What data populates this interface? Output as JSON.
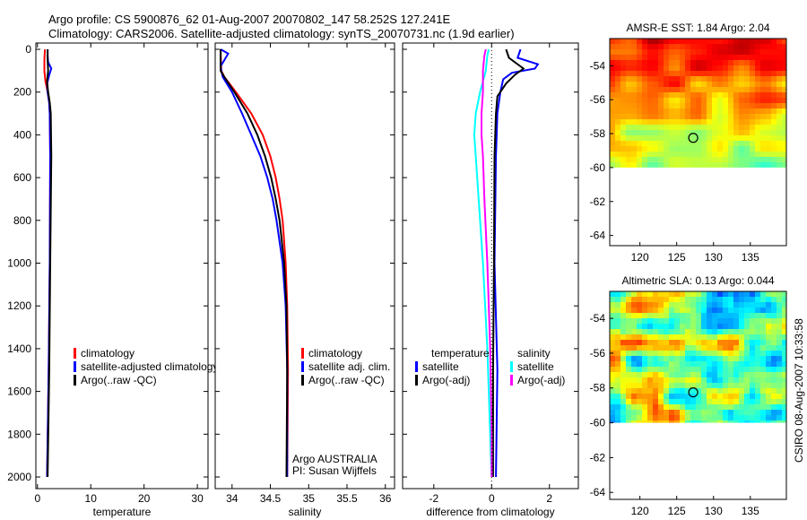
{
  "header": {
    "line1": "Argo profile: CS 5900876_62 01-Aug-2007 20070802_147 58.252S 127.241E",
    "line2": "Climatology: CARS2006. Satellite-adjusted climatology: synTS_20070731.nc (1.9d earlier)"
  },
  "side_stamp": "CSIRO 08-Aug-2007 10:33:58",
  "chart_data": [
    {
      "type": "line",
      "xlabel": "temperature",
      "xlim": [
        -0.3,
        32
      ],
      "xticks": [
        0,
        10,
        20,
        30
      ],
      "ylim": [
        0,
        2080
      ],
      "yticks": [
        0,
        200,
        400,
        600,
        800,
        1000,
        1200,
        1400,
        1600,
        1800,
        2000
      ],
      "yreverse": true,
      "legend": [
        {
          "label": "climatology",
          "color": "#ff0000"
        },
        {
          "label": "satellite-adjusted climatology",
          "color": "#0000ff"
        },
        {
          "label": "Argo(..raw -QC)",
          "color": "#000000"
        }
      ],
      "series": [
        {
          "name": "climatology",
          "color": "#ff0000",
          "depth": [
            0,
            50,
            100,
            150,
            200,
            250,
            300,
            500,
            1000,
            1500,
            2000
          ],
          "values": [
            1.4,
            1.3,
            1.3,
            1.5,
            1.9,
            2.2,
            2.3,
            2.4,
            2.3,
            2.1,
            1.8
          ]
        },
        {
          "name": "satellite-adjusted climatology",
          "color": "#0000ff",
          "depth": [
            0,
            30,
            60,
            90,
            120,
            160,
            200,
            250,
            300,
            500,
            1000,
            1500,
            2000
          ],
          "values": [
            1.9,
            1.9,
            2.0,
            2.6,
            2.2,
            1.8,
            1.9,
            2.2,
            2.3,
            2.4,
            2.3,
            2.1,
            1.8
          ]
        },
        {
          "name": "Argo",
          "color": "#000000",
          "depth": [
            0,
            50,
            100,
            150,
            200,
            250,
            300,
            500,
            1000,
            1500,
            2000
          ],
          "values": [
            1.9,
            1.9,
            2.0,
            1.8,
            2.0,
            2.3,
            2.5,
            2.6,
            2.4,
            2.2,
            1.9
          ]
        }
      ]
    },
    {
      "type": "line",
      "xlabel": "salinity",
      "xlim": [
        33.78,
        36.12
      ],
      "xticks": [
        34,
        34.5,
        35,
        35.5,
        36
      ],
      "ylim": [
        0,
        2080
      ],
      "yreverse": true,
      "legend": [
        {
          "label": "climatology",
          "color": "#ff0000"
        },
        {
          "label": "satellite adj. clim.",
          "color": "#0000ff"
        },
        {
          "label": "Argo(..raw -QC)",
          "color": "#000000"
        }
      ],
      "annotation": [
        "Argo AUSTRALIA",
        "PI: Susan Wijffels"
      ],
      "series": [
        {
          "name": "climatology",
          "color": "#ff0000",
          "depth": [
            0,
            100,
            130,
            200,
            300,
            400,
            500,
            600,
            700,
            800,
            1000,
            1200,
            1500,
            2000
          ],
          "values": [
            33.85,
            33.86,
            33.9,
            34.05,
            34.25,
            34.4,
            34.5,
            34.57,
            34.62,
            34.66,
            34.7,
            34.72,
            34.73,
            34.72
          ]
        },
        {
          "name": "satellite adj. clim.",
          "color": "#0000ff",
          "depth": [
            0,
            20,
            50,
            80,
            100,
            130,
            200,
            300,
            400,
            500,
            600,
            700,
            800,
            1000,
            1200,
            1500,
            2000
          ],
          "values": [
            33.85,
            33.95,
            33.9,
            33.85,
            33.86,
            33.88,
            34.0,
            34.13,
            34.25,
            34.37,
            34.46,
            34.53,
            34.58,
            34.66,
            34.7,
            34.72,
            34.72
          ]
        },
        {
          "name": "Argo",
          "color": "#000000",
          "depth": [
            0,
            100,
            130,
            200,
            300,
            400,
            500,
            600,
            700,
            800,
            1000,
            1200,
            1500,
            2000
          ],
          "values": [
            33.85,
            33.85,
            33.9,
            34.03,
            34.2,
            34.33,
            34.43,
            34.51,
            34.57,
            34.62,
            34.68,
            34.71,
            34.72,
            34.71
          ]
        }
      ]
    },
    {
      "type": "line",
      "xlabel": "difference from climatology",
      "xlim": [
        -3.08,
        3.0
      ],
      "xticks": [
        -2,
        0,
        2
      ],
      "ylim": [
        0,
        2080
      ],
      "yreverse": true,
      "legend": [
        {
          "label": "temperature",
          "color": null
        },
        {
          "label": "satellite",
          "color": "#0000ff"
        },
        {
          "label": "Argo(-adj)",
          "color": "#000000"
        },
        {
          "label": "salinity",
          "color": null
        },
        {
          "label": "satellite",
          "color": "#00ffff"
        },
        {
          "label": "Argo(-adj)",
          "color": "#ff00ff"
        }
      ],
      "series": [
        {
          "name": "temp satellite",
          "color": "#0000ff",
          "depth": [
            0,
            40,
            70,
            90,
            110,
            140,
            200,
            300,
            500,
            1000,
            1500,
            2000
          ],
          "values": [
            1.0,
            0.9,
            1.6,
            1.5,
            0.7,
            0.4,
            0.3,
            0.2,
            0.15,
            0.1,
            0.2,
            0.15
          ]
        },
        {
          "name": "temp Argo",
          "color": "#000000",
          "depth": [
            0,
            40,
            90,
            120,
            160,
            220,
            300,
            500,
            1000,
            1500,
            2000
          ],
          "values": [
            0.5,
            0.6,
            1.1,
            0.8,
            0.5,
            0.2,
            0.15,
            0.1,
            0.08,
            0.05,
            0.05
          ]
        },
        {
          "name": "salinity satellite",
          "color": "#00ffff",
          "depth": [
            0,
            30,
            100,
            200,
            300,
            400,
            500,
            700,
            1000,
            1400,
            1800,
            2000
          ],
          "values": [
            -0.1,
            -0.15,
            -0.2,
            -0.4,
            -0.55,
            -0.6,
            -0.55,
            -0.45,
            -0.3,
            -0.15,
            -0.05,
            0
          ]
        },
        {
          "name": "salinity Argo",
          "color": "#ff00ff",
          "depth": [
            0,
            30,
            100,
            200,
            300,
            400,
            500,
            700,
            1000,
            1400,
            1800,
            2000
          ],
          "values": [
            -0.2,
            -0.25,
            -0.3,
            -0.3,
            -0.35,
            -0.35,
            -0.3,
            -0.25,
            -0.15,
            -0.05,
            0,
            0
          ]
        }
      ]
    },
    {
      "type": "heatmap",
      "title": "AMSR-E SST: 1.84 Argo: 2.04",
      "xlim": [
        115.9,
        139.9
      ],
      "ylim": [
        -64.6,
        -52.4
      ],
      "xticks": [
        120,
        125,
        130,
        135
      ],
      "yticks": [
        -54,
        -56,
        -58,
        -60,
        -62,
        -64
      ],
      "data_min_lat": -60,
      "marker": [
        127.24,
        -58.25
      ],
      "palette": "warm"
    },
    {
      "type": "heatmap",
      "title": "Altimetric SLA: 0.13 Argo: 0.044",
      "xlim": [
        115.9,
        139.9
      ],
      "ylim": [
        -64.4,
        -52.45
      ],
      "xticks": [
        120,
        125,
        130,
        135
      ],
      "yticks": [
        -54,
        -56,
        -58,
        -60,
        -62,
        -64
      ],
      "data_min_lat": -60,
      "marker": [
        127.24,
        -58.25
      ],
      "palette": "sla"
    }
  ]
}
